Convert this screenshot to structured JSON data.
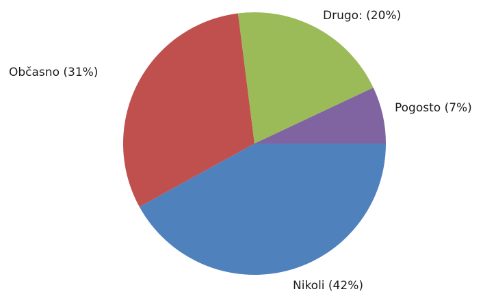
{
  "chart_data": {
    "type": "pie",
    "title": "",
    "legend": "none",
    "start": "3 o'clock",
    "direction": "clockwise",
    "slices": [
      {
        "name": "Nikoli",
        "value": 42,
        "label": "Nikoli (42%)",
        "color": "#4f81bd"
      },
      {
        "name": "Občasno",
        "value": 31,
        "label": "Občasno (31%)",
        "color": "#c0504d"
      },
      {
        "name": "Drugo:",
        "value": 20,
        "label": "Drugo: (20%)",
        "color": "#9bbb59"
      },
      {
        "name": "Pogosto",
        "value": 7,
        "label": "Pogosto (7%)",
        "color": "#8064a2"
      }
    ]
  }
}
